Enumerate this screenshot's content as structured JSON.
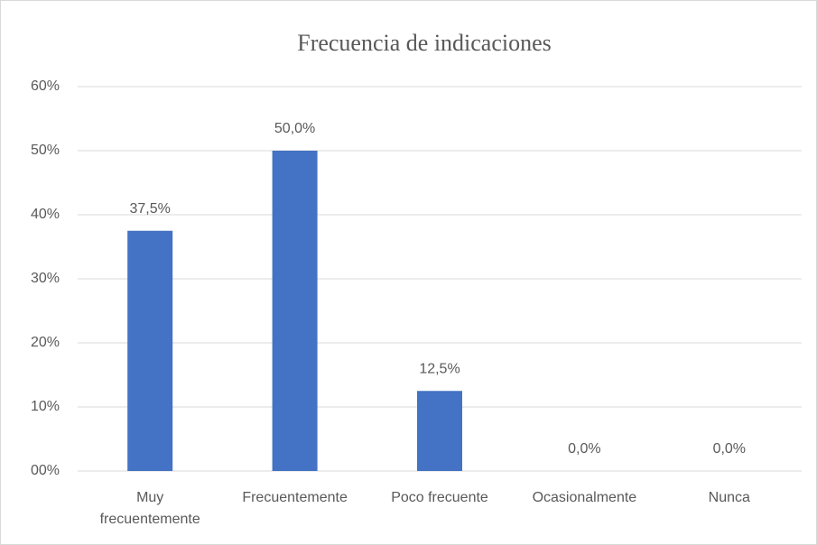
{
  "chart_data": {
    "type": "bar",
    "title": "Frecuencia de indicaciones",
    "categories": [
      "Muy frecuentemente",
      "Frecuentemente",
      "Poco frecuente",
      "Ocasionalmente",
      "Nunca"
    ],
    "values": [
      37.5,
      50,
      12.5,
      0,
      0
    ],
    "value_labels": [
      "37,5%",
      "50,0%",
      "12,5%",
      "0,0%",
      "0,0%"
    ],
    "color": "#4472c4",
    "ylim": [
      0,
      60
    ],
    "yticks": [
      {
        "value": 0,
        "label": "00%"
      },
      {
        "value": 10,
        "label": "10%"
      },
      {
        "value": 20,
        "label": "20%"
      },
      {
        "value": 30,
        "label": "30%"
      },
      {
        "value": 40,
        "label": "40%"
      },
      {
        "value": 50,
        "label": "50%"
      },
      {
        "value": 60,
        "label": "60%"
      }
    ],
    "grid": true
  }
}
